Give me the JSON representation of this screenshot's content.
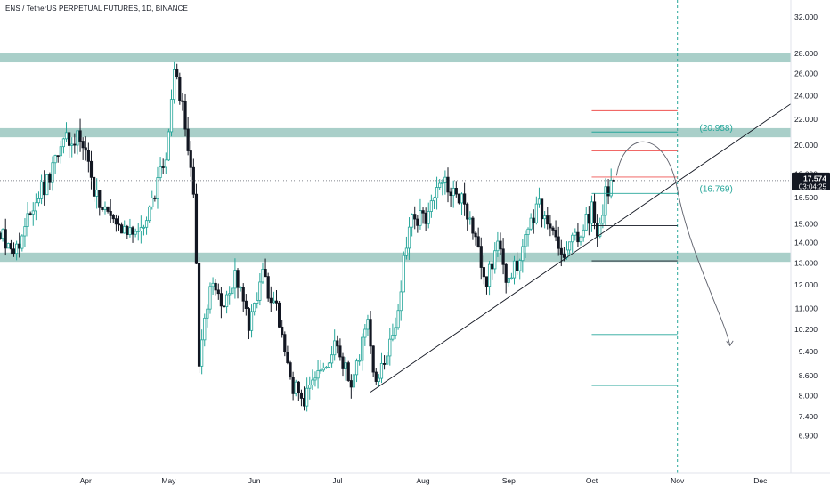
{
  "header": {
    "title": "ENS / TetherUS PERPETUAL FUTURES, 1D, BINANCE"
  },
  "colors": {
    "up": "#26a69a",
    "down": "#131722",
    "zone": "#a9cfc9",
    "red_level": "#ef5350",
    "green_level": "#26a69a",
    "line": "#131722",
    "axis_text": "#131722",
    "price_tag_bg": "#131722"
  },
  "chart_data": {
    "type": "candlestick",
    "instrument": "ENS / TetherUS PERPETUAL FUTURES",
    "interval": "1D",
    "exchange": "BINANCE",
    "y_scale": "log",
    "ylim": [
      6.5,
      33.5
    ],
    "y_ticks": [
      "32.000",
      "28.000",
      "26.000",
      "24.000",
      "22.000",
      "20.000",
      "18.000",
      "16.500",
      "15.000",
      "14.000",
      "13.000",
      "12.000",
      "11.000",
      "10.200",
      "9.400",
      "8.600",
      "8.000",
      "7.400",
      "6.900"
    ],
    "x_ticks": [
      "Apr",
      "May",
      "Jun",
      "Jul",
      "Aug",
      "Sep",
      "Oct",
      "Nov",
      "Dec"
    ],
    "x_range": [
      "2022-03-01",
      "2022-12-12"
    ],
    "last_price": {
      "value": "17.574",
      "countdown": "03:04:25"
    },
    "zones": [
      {
        "low": 27.1,
        "high": 28.0
      },
      {
        "low": 20.6,
        "high": 21.3
      },
      {
        "low": 13.05,
        "high": 13.5
      }
    ],
    "price_labels": [
      {
        "text": "(20.958)",
        "value": 20.958
      },
      {
        "text": "(16.769)",
        "value": 16.769
      }
    ],
    "vertical_marker": "2022-11-01",
    "trendline": {
      "from": {
        "date": "2022-07-13",
        "price": 8.1
      },
      "to": {
        "date": "2022-12-29",
        "price": 26.2
      }
    },
    "level_lines": [
      {
        "price": 22.7,
        "color": "red"
      },
      {
        "price": 21.0,
        "color": "green"
      },
      {
        "price": 19.6,
        "color": "red"
      },
      {
        "price": 17.8,
        "color": "red"
      },
      {
        "price": 16.769,
        "color": "green"
      },
      {
        "price": 14.9,
        "color": "black"
      },
      {
        "price": 13.1,
        "color": "black"
      },
      {
        "price": 10.0,
        "color": "green"
      },
      {
        "price": 8.3,
        "color": "green"
      }
    ],
    "projection": [
      {
        "date": "2022-10-10",
        "price": 17.9
      },
      {
        "date": "2022-10-22",
        "price": 20.4
      },
      {
        "date": "2022-11-01",
        "price": 17.0
      },
      {
        "date": "2022-11-20",
        "price": 9.6
      }
    ],
    "ohlc_anchors": [
      [
        "2022-03-01",
        14.5
      ],
      [
        "2022-03-06",
        13.2
      ],
      [
        "2022-03-12",
        15.8
      ],
      [
        "2022-03-18",
        17.6
      ],
      [
        "2022-03-24",
        20.2
      ],
      [
        "2022-03-30",
        20.8
      ],
      [
        "2022-04-04",
        16.8
      ],
      [
        "2022-04-10",
        15.4
      ],
      [
        "2022-04-18",
        14.3
      ],
      [
        "2022-04-24",
        15.6
      ],
      [
        "2022-04-30",
        19.5
      ],
      [
        "2022-05-03",
        26.8
      ],
      [
        "2022-05-07",
        21.5
      ],
      [
        "2022-05-10",
        17.2
      ],
      [
        "2022-05-12",
        9.2
      ],
      [
        "2022-05-16",
        12.0
      ],
      [
        "2022-05-20",
        11.0
      ],
      [
        "2022-05-25",
        12.6
      ],
      [
        "2022-05-30",
        10.2
      ],
      [
        "2022-06-04",
        12.5
      ],
      [
        "2022-06-10",
        10.6
      ],
      [
        "2022-06-14",
        8.4
      ],
      [
        "2022-06-19",
        7.8
      ],
      [
        "2022-06-24",
        8.8
      ],
      [
        "2022-06-30",
        9.6
      ],
      [
        "2022-07-06",
        8.5
      ],
      [
        "2022-07-12",
        10.4
      ],
      [
        "2022-07-15",
        8.4
      ],
      [
        "2022-07-22",
        10.5
      ],
      [
        "2022-07-27",
        15.0
      ],
      [
        "2022-08-02",
        15.5
      ],
      [
        "2022-08-08",
        17.6
      ],
      [
        "2022-08-13",
        16.8
      ],
      [
        "2022-08-18",
        15.5
      ],
      [
        "2022-08-24",
        12.2
      ],
      [
        "2022-08-28",
        13.8
      ],
      [
        "2022-09-01",
        12.0
      ],
      [
        "2022-09-06",
        13.8
      ],
      [
        "2022-09-12",
        16.0
      ],
      [
        "2022-09-17",
        14.5
      ],
      [
        "2022-09-21",
        13.3
      ],
      [
        "2022-09-27",
        14.8
      ],
      [
        "2022-10-01",
        15.8
      ],
      [
        "2022-10-03",
        14.5
      ],
      [
        "2022-10-06",
        16.8
      ],
      [
        "2022-10-09",
        17.574
      ]
    ]
  }
}
